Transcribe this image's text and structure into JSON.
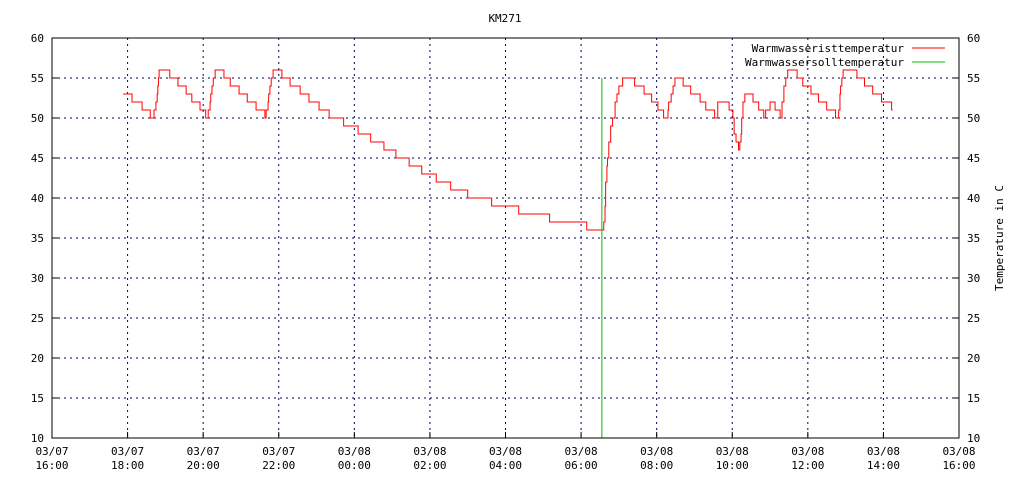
{
  "chart_data": {
    "type": "line",
    "title": "KM271",
    "ylabel_right": "Temperature in C",
    "xlabel": "",
    "ylim": [
      10,
      60
    ],
    "yticks": [
      10,
      15,
      20,
      25,
      30,
      35,
      40,
      45,
      50,
      55,
      60
    ],
    "xlim": [
      "03/07 16:00",
      "03/08 16:00"
    ],
    "xticks": [
      "03/07 16:00",
      "03/07 18:00",
      "03/07 20:00",
      "03/07 22:00",
      "03/08 00:00",
      "03/08 02:00",
      "03/08 04:00",
      "03/08 06:00",
      "03/08 08:00",
      "03/08 10:00",
      "03/08 12:00",
      "03/08 14:00",
      "03/08 16:00"
    ],
    "grid": true,
    "legend_position": "top-right",
    "series": [
      {
        "name": "Warmwasseristtemperatur",
        "color": "#ff0000",
        "style": "steps",
        "points": [
          [
            "03/07 17:53",
            53
          ],
          [
            "03/07 18:07",
            52
          ],
          [
            "03/07 18:23",
            51
          ],
          [
            "03/07 18:36",
            50
          ],
          [
            "03/07 18:42",
            51
          ],
          [
            "03/07 18:45",
            52
          ],
          [
            "03/07 18:47",
            53
          ],
          [
            "03/07 18:48",
            54
          ],
          [
            "03/07 18:49",
            55
          ],
          [
            "03/07 18:50",
            56
          ],
          [
            "03/07 19:07",
            55
          ],
          [
            "03/07 19:20",
            54
          ],
          [
            "03/07 19:33",
            53
          ],
          [
            "03/07 19:42",
            52
          ],
          [
            "03/07 19:55",
            51
          ],
          [
            "03/07 20:04",
            50
          ],
          [
            "03/07 20:08",
            51
          ],
          [
            "03/07 20:11",
            52
          ],
          [
            "03/07 20:12",
            53
          ],
          [
            "03/07 20:14",
            54
          ],
          [
            "03/07 20:16",
            55
          ],
          [
            "03/07 20:19",
            56
          ],
          [
            "03/07 20:33",
            55
          ],
          [
            "03/07 20:43",
            54
          ],
          [
            "03/07 20:57",
            53
          ],
          [
            "03/07 21:10",
            52
          ],
          [
            "03/07 21:24",
            51
          ],
          [
            "03/07 21:38",
            50
          ],
          [
            "03/07 21:40",
            51
          ],
          [
            "03/07 21:43",
            52
          ],
          [
            "03/07 21:44",
            53
          ],
          [
            "03/07 21:46",
            54
          ],
          [
            "03/07 21:48",
            55
          ],
          [
            "03/07 21:51",
            56
          ],
          [
            "03/07 22:05",
            55
          ],
          [
            "03/07 22:18",
            54
          ],
          [
            "03/07 22:34",
            53
          ],
          [
            "03/07 22:48",
            52
          ],
          [
            "03/07 23:04",
            51
          ],
          [
            "03/07 23:20",
            50
          ],
          [
            "03/07 23:43",
            49
          ],
          [
            "03/08 00:06",
            48
          ],
          [
            "03/08 00:26",
            47
          ],
          [
            "03/08 00:47",
            46
          ],
          [
            "03/08 01:06",
            45
          ],
          [
            "03/08 01:27",
            44
          ],
          [
            "03/08 01:47",
            43
          ],
          [
            "03/08 02:10",
            42
          ],
          [
            "03/08 02:33",
            41
          ],
          [
            "03/08 03:00",
            40
          ],
          [
            "03/08 03:38",
            39
          ],
          [
            "03/08 04:21",
            38
          ],
          [
            "03/08 05:10",
            37
          ],
          [
            "03/08 06:09",
            36
          ],
          [
            "03/08 06:36",
            37
          ],
          [
            "03/08 06:38",
            39
          ],
          [
            "03/08 06:39",
            42
          ],
          [
            "03/08 06:41",
            44
          ],
          [
            "03/08 06:42",
            45
          ],
          [
            "03/08 06:44",
            47
          ],
          [
            "03/08 06:47",
            49
          ],
          [
            "03/08 06:50",
            50
          ],
          [
            "03/08 06:54",
            52
          ],
          [
            "03/08 06:57",
            53
          ],
          [
            "03/08 07:00",
            54
          ],
          [
            "03/08 07:06",
            55
          ],
          [
            "03/08 07:25",
            54
          ],
          [
            "03/08 07:40",
            53
          ],
          [
            "03/08 07:52",
            52
          ],
          [
            "03/08 08:02",
            51
          ],
          [
            "03/08 08:11",
            50
          ],
          [
            "03/08 08:18",
            51
          ],
          [
            "03/08 08:19",
            52
          ],
          [
            "03/08 08:23",
            53
          ],
          [
            "03/08 08:26",
            54
          ],
          [
            "03/08 08:29",
            55
          ],
          [
            "03/08 08:42",
            54
          ],
          [
            "03/08 08:54",
            53
          ],
          [
            "03/08 09:09",
            52
          ],
          [
            "03/08 09:18",
            51
          ],
          [
            "03/08 09:32",
            50
          ],
          [
            "03/08 09:37",
            52
          ],
          [
            "03/08 09:55",
            51
          ],
          [
            "03/08 10:01",
            50
          ],
          [
            "03/08 10:03",
            48
          ],
          [
            "03/08 10:06",
            47
          ],
          [
            "03/08 10:10",
            46
          ],
          [
            "03/08 10:12",
            47
          ],
          [
            "03/08 10:14",
            48
          ],
          [
            "03/08 10:15",
            50
          ],
          [
            "03/08 10:17",
            52
          ],
          [
            "03/08 10:20",
            53
          ],
          [
            "03/08 10:33",
            52
          ],
          [
            "03/08 10:42",
            51
          ],
          [
            "03/08 10:50",
            50
          ],
          [
            "03/08 10:53",
            51
          ],
          [
            "03/08 11:00",
            52
          ],
          [
            "03/08 11:08",
            51
          ],
          [
            "03/08 11:16",
            50
          ],
          [
            "03/08 11:19",
            52
          ],
          [
            "03/08 11:22",
            54
          ],
          [
            "03/08 11:25",
            55
          ],
          [
            "03/08 11:28",
            56
          ],
          [
            "03/08 11:43",
            55
          ],
          [
            "03/08 11:52",
            54
          ],
          [
            "03/08 12:05",
            53
          ],
          [
            "03/08 12:17",
            52
          ],
          [
            "03/08 12:30",
            51
          ],
          [
            "03/08 12:44",
            50
          ],
          [
            "03/08 12:49",
            51
          ],
          [
            "03/08 12:51",
            53
          ],
          [
            "03/08 12:52",
            54
          ],
          [
            "03/08 12:54",
            55
          ],
          [
            "03/08 12:56",
            56
          ],
          [
            "03/08 13:18",
            55
          ],
          [
            "03/08 13:30",
            54
          ],
          [
            "03/08 13:43",
            53
          ],
          [
            "03/08 13:57",
            52
          ],
          [
            "03/08 14:13",
            51
          ]
        ]
      },
      {
        "name": "Warmwassersolltemperatur",
        "color": "#00c000",
        "style": "lines",
        "points": [
          [
            "03/08 06:33",
            10
          ],
          [
            "03/08 06:33",
            55
          ]
        ]
      }
    ]
  }
}
